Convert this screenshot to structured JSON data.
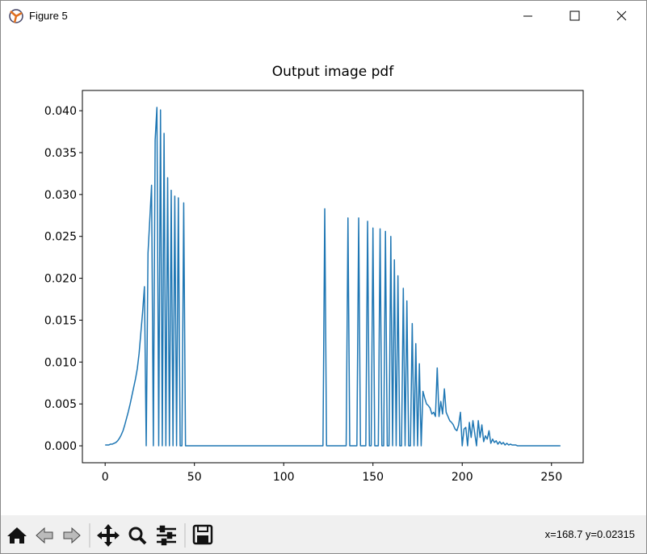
{
  "window": {
    "title": "Figure 5"
  },
  "chart_data": {
    "type": "line",
    "title": "Output image pdf",
    "color": "#1f77b4",
    "x": [
      0,
      1,
      2,
      3,
      4,
      5,
      6,
      7,
      8,
      9,
      10,
      11,
      12,
      13,
      14,
      15,
      16,
      17,
      18,
      19,
      20,
      21,
      22,
      23,
      24,
      25,
      26,
      27,
      28,
      29,
      30,
      31,
      32,
      33,
      34,
      35,
      36,
      37,
      38,
      39,
      40,
      41,
      42,
      43,
      44,
      45,
      46,
      47,
      48,
      49,
      50,
      51,
      52,
      53,
      54,
      55,
      56,
      57,
      58,
      59,
      60,
      61,
      62,
      63,
      64,
      65,
      66,
      67,
      68,
      69,
      70,
      71,
      72,
      73,
      74,
      75,
      76,
      77,
      78,
      79,
      80,
      81,
      82,
      83,
      84,
      85,
      86,
      87,
      88,
      89,
      90,
      91,
      92,
      93,
      94,
      95,
      96,
      97,
      98,
      99,
      100,
      101,
      102,
      103,
      104,
      105,
      106,
      107,
      108,
      109,
      110,
      111,
      112,
      113,
      114,
      115,
      116,
      117,
      118,
      119,
      120,
      121,
      122,
      123,
      124,
      125,
      126,
      127,
      128,
      129,
      130,
      131,
      132,
      133,
      134,
      135,
      136,
      137,
      138,
      139,
      140,
      141,
      142,
      143,
      144,
      145,
      146,
      147,
      148,
      149,
      150,
      151,
      152,
      153,
      154,
      155,
      156,
      157,
      158,
      159,
      160,
      161,
      162,
      163,
      164,
      165,
      166,
      167,
      168,
      169,
      170,
      171,
      172,
      173,
      174,
      175,
      176,
      177,
      178,
      179,
      180,
      181,
      182,
      183,
      184,
      185,
      186,
      187,
      188,
      189,
      190,
      191,
      192,
      193,
      194,
      195,
      196,
      197,
      198,
      199,
      200,
      201,
      202,
      203,
      204,
      205,
      206,
      207,
      208,
      209,
      210,
      211,
      212,
      213,
      214,
      215,
      216,
      217,
      218,
      219,
      220,
      221,
      222,
      223,
      224,
      225,
      226,
      227,
      228,
      229,
      230,
      231,
      232,
      233,
      234,
      235,
      236,
      237,
      238,
      239,
      240,
      241,
      242,
      243,
      244,
      245,
      246,
      247,
      248,
      249,
      250,
      251,
      252,
      253,
      254,
      255
    ],
    "values": [
      0.0001,
      0.0001,
      0.0001,
      0.0002,
      0.0002,
      0.0003,
      0.0004,
      0.0006,
      0.0009,
      0.0013,
      0.0018,
      0.0025,
      0.0033,
      0.0041,
      0.005,
      0.006,
      0.007,
      0.008,
      0.0092,
      0.011,
      0.0135,
      0.016,
      0.019,
      0,
      0.023,
      0.027,
      0.0311,
      0,
      0.0365,
      0.0404,
      0,
      0.0401,
      0,
      0.0373,
      0,
      0.032,
      0,
      0.0305,
      0,
      0.0298,
      0,
      0.0296,
      0,
      0,
      0.029,
      0,
      0,
      0,
      0,
      0,
      0,
      0,
      0,
      0,
      0,
      0,
      0,
      0,
      0,
      0,
      0,
      0,
      0,
      0,
      0,
      0,
      0,
      0,
      0,
      0,
      0,
      0,
      0,
      0,
      0,
      0,
      0,
      0,
      0,
      0,
      0,
      0,
      0,
      0,
      0,
      0,
      0,
      0,
      0,
      0,
      0,
      0,
      0,
      0,
      0,
      0,
      0,
      0,
      0,
      0,
      0,
      0,
      0,
      0,
      0,
      0,
      0,
      0,
      0,
      0,
      0,
      0,
      0,
      0,
      0,
      0,
      0,
      0,
      0,
      0,
      0,
      0,
      0,
      0.0283,
      0,
      0,
      0,
      0,
      0,
      0,
      0,
      0,
      0,
      0,
      0,
      0,
      0.0272,
      0,
      0,
      0,
      0,
      0,
      0.0272,
      0,
      0,
      0,
      0,
      0.0268,
      0,
      0,
      0.026,
      0,
      0,
      0,
      0.0259,
      0,
      0,
      0.0256,
      0,
      0,
      0.025,
      0,
      0.0222,
      0,
      0.0203,
      0,
      0,
      0.0188,
      0,
      0.0173,
      0,
      0,
      0.0146,
      0,
      0.0122,
      0,
      0.0098,
      0,
      0.0065,
      0.0057,
      0.005,
      0.0048,
      0.0045,
      0.0038,
      0.004,
      0.0035,
      0.0093,
      0.0035,
      0.0053,
      0.0038,
      0.0068,
      0.004,
      0.0035,
      0.003,
      0.0028,
      0.0025,
      0.002,
      0.0018,
      0.0025,
      0.004,
      0,
      0.002,
      0.0022,
      0,
      0.0028,
      0.001,
      0.003,
      0.0015,
      0,
      0.003,
      0.001,
      0.0025,
      0.0005,
      0.0012,
      0.0008,
      0.0018,
      0.0003,
      0.0008,
      0.0004,
      0.0006,
      0.0002,
      0.0005,
      0.0002,
      0.0004,
      0.0001,
      0.0003,
      0.0001,
      0.0002,
      0.0001,
      0.0001,
      0.0001,
      0,
      0,
      0,
      0,
      0,
      0,
      0,
      0,
      0,
      0,
      0,
      0,
      0,
      0,
      0,
      0,
      0,
      0,
      0,
      0,
      0,
      0,
      0,
      0,
      0
    ],
    "xlim": [
      -12.75,
      267.75
    ],
    "xticks": [
      0,
      50,
      100,
      150,
      200,
      250
    ],
    "ylim": [
      -0.00202,
      0.04242
    ],
    "yticks": [
      {
        "value": 0,
        "label": "0.000"
      },
      {
        "value": 0.005,
        "label": "0.005"
      },
      {
        "value": 0.01,
        "label": "0.010"
      },
      {
        "value": 0.015,
        "label": "0.015"
      },
      {
        "value": 0.02,
        "label": "0.020"
      },
      {
        "value": 0.025,
        "label": "0.025"
      },
      {
        "value": 0.03,
        "label": "0.030"
      },
      {
        "value": 0.035,
        "label": "0.035"
      },
      {
        "value": 0.04,
        "label": "0.040"
      }
    ],
    "grid": false
  },
  "toolbar": {
    "status": "x=168.7 y=0.02315"
  }
}
